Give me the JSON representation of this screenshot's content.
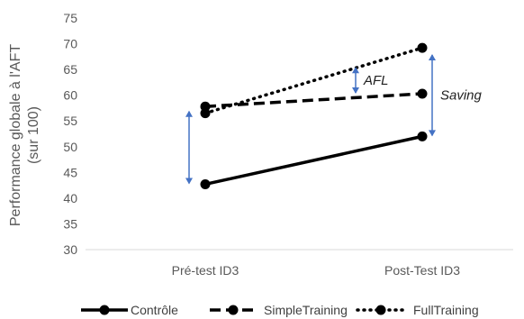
{
  "chart_data": {
    "type": "line",
    "categories": [
      "Pré-test ID3",
      "Post-Test ID3"
    ],
    "ylabel_line1": "Performance globale à l'AFT",
    "ylabel_line2": "(sur 100)",
    "ylim": [
      30,
      75
    ],
    "yticks": [
      30,
      35,
      40,
      45,
      50,
      55,
      60,
      65,
      70,
      75
    ],
    "grid": false,
    "legend_position": "bottom",
    "series": [
      {
        "name": "Contrôle",
        "values": [
          42.7,
          52.0
        ],
        "style": "solid",
        "color": "#000000"
      },
      {
        "name": "SimpleTraining",
        "values": [
          57.8,
          60.3
        ],
        "style": "dashed",
        "color": "#000000"
      },
      {
        "name": "FullTraining",
        "values": [
          56.5,
          69.2
        ],
        "style": "dotted",
        "color": "#000000"
      }
    ],
    "annotations": [
      {
        "label": "",
        "category_index": 0,
        "from": 42.7,
        "to": 57.0,
        "label_side": "none"
      },
      {
        "label": "AFL",
        "category_index": 1,
        "from": 60.3,
        "to": 65.5,
        "label_side": "right"
      },
      {
        "label": "Saving",
        "category_index": 1,
        "from": 52.0,
        "to": 68.0,
        "label_side": "right"
      }
    ],
    "arrow_color": "#4472C4"
  }
}
